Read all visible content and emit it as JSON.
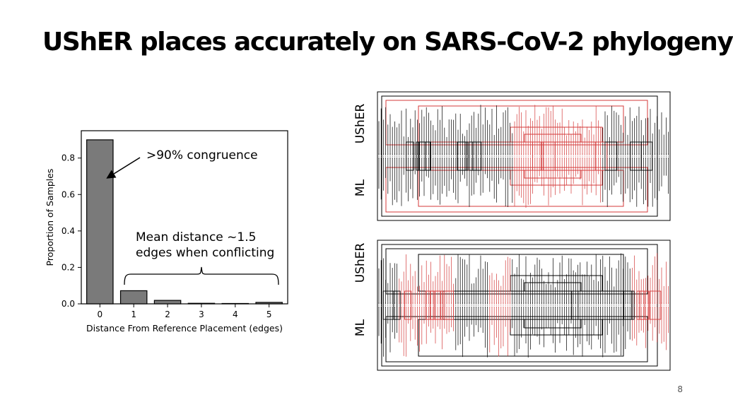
{
  "slide": {
    "title": "UShER places accurately on SARS-CoV-2 phylogeny",
    "page_number": "8"
  },
  "annotations": {
    "congruence": ">90% congruence",
    "mean_line1": "Mean distance ~1.5",
    "mean_line2": "edges when conflicting"
  },
  "tanglegrams": [
    {
      "top_label": "UShER",
      "bottom_label": "ML"
    },
    {
      "top_label": "UShER",
      "bottom_label": "ML"
    }
  ],
  "colors": {
    "bar_fill": "#7a7a7a",
    "conflict": "#d43a3a",
    "tree_line": "#000000"
  },
  "chart_data": {
    "type": "bar",
    "categories": [
      "0",
      "1",
      "2",
      "3",
      "4",
      "5"
    ],
    "values": [
      0.9,
      0.072,
      0.019,
      0.003,
      0.002,
      0.008
    ],
    "xlabel": "Distance From Reference Placement (edges)",
    "ylabel": "Proportion of Samples",
    "yticks": [
      "0.0",
      "0.2",
      "0.4",
      "0.6",
      "0.8"
    ],
    "ylim": [
      0,
      0.95
    ],
    "grid": false
  }
}
